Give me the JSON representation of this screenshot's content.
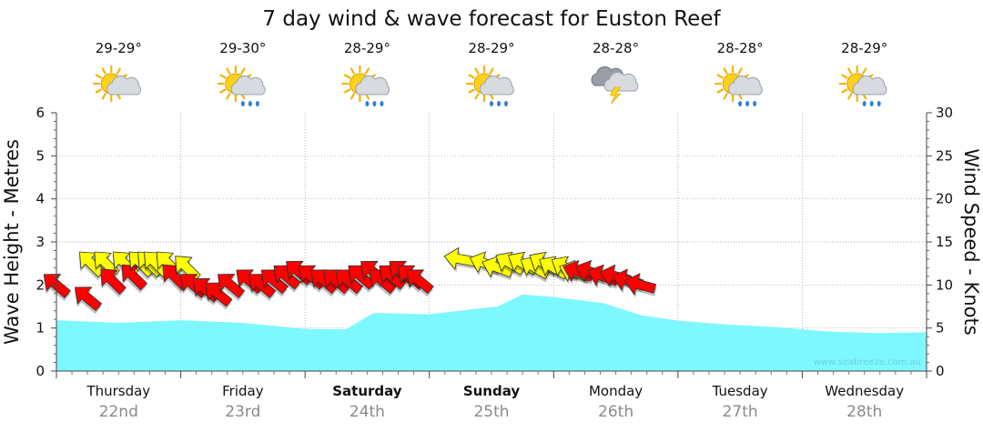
{
  "chart_data": {
    "type": "area",
    "title": "7 day wind & wave forecast for Euston Reef",
    "y_left_label": "Wave Height - Metres",
    "y_right_label": "Wind Speed - Knots",
    "y_left_ticks": [
      "0",
      "1",
      "2",
      "3",
      "4",
      "5",
      "6"
    ],
    "y_right_ticks": [
      "0",
      "5",
      "10",
      "15",
      "20",
      "25",
      "30"
    ],
    "ylim_left": [
      0,
      6
    ],
    "ylim_right": [
      0,
      30
    ],
    "grid": true,
    "watermark": "www.seabreeze.com.au",
    "days": [
      {
        "name": "Thursday",
        "date": "22nd",
        "temp": "29-29°",
        "icon": "sun-cloud-icon",
        "bold": false
      },
      {
        "name": "Friday",
        "date": "23rd",
        "temp": "29-30°",
        "icon": "sun-cloud-rain-icon",
        "bold": false
      },
      {
        "name": "Saturday",
        "date": "24th",
        "temp": "28-29°",
        "icon": "sun-cloud-rain-icon",
        "bold": true
      },
      {
        "name": "Sunday",
        "date": "25th",
        "temp": "28-29°",
        "icon": "sun-cloud-rain-icon",
        "bold": true
      },
      {
        "name": "Monday",
        "date": "26th",
        "temp": "28-28°",
        "icon": "storm-cloud-icon",
        "bold": false
      },
      {
        "name": "Tuesday",
        "date": "27th",
        "temp": "28-28°",
        "icon": "sun-cloud-rain-icon",
        "bold": false
      },
      {
        "name": "Wednesday",
        "date": "28th",
        "temp": "28-29°",
        "icon": "sun-cloud-rain-icon",
        "bold": false
      }
    ],
    "wave_series": {
      "name": "Wave Height",
      "color": "#7ef8ff",
      "x_days": [
        0,
        0.5,
        1.0,
        1.5,
        2.0,
        2.33,
        2.55,
        3.0,
        3.3,
        3.55,
        3.75,
        4.0,
        4.4,
        4.7,
        5.0,
        5.4,
        5.8,
        6.2,
        6.6,
        7.0
      ],
      "values": [
        1.18,
        1.12,
        1.18,
        1.12,
        0.98,
        0.97,
        1.35,
        1.32,
        1.42,
        1.5,
        1.78,
        1.72,
        1.58,
        1.3,
        1.17,
        1.08,
        1.02,
        0.92,
        0.88,
        0.9
      ]
    },
    "wind_series": {
      "name": "Wind",
      "calm_color": "#ffff00",
      "strong_color": "#ff0000",
      "points": [
        {
          "x": 0.0,
          "knots": 10.0,
          "color": "red",
          "angle": 40
        },
        {
          "x": 0.25,
          "knots": 8.5,
          "color": "red",
          "angle": 40
        },
        {
          "x": 0.28,
          "knots": 12.5,
          "color": "yellow",
          "angle": 45
        },
        {
          "x": 0.4,
          "knots": 12.5,
          "color": "yellow",
          "angle": 45
        },
        {
          "x": 0.45,
          "knots": 10.5,
          "color": "red",
          "angle": 45
        },
        {
          "x": 0.55,
          "knots": 12.5,
          "color": "yellow",
          "angle": 45
        },
        {
          "x": 0.62,
          "knots": 11.0,
          "color": "red",
          "angle": 45
        },
        {
          "x": 0.68,
          "knots": 12.5,
          "color": "yellow",
          "angle": 45
        },
        {
          "x": 0.75,
          "knots": 12.5,
          "color": "yellow",
          "angle": 45
        },
        {
          "x": 0.8,
          "knots": 12.5,
          "color": "yellow",
          "angle": 45
        },
        {
          "x": 0.9,
          "knots": 12.5,
          "color": "yellow",
          "angle": 45
        },
        {
          "x": 0.95,
          "knots": 11.0,
          "color": "red",
          "angle": 45
        },
        {
          "x": 1.05,
          "knots": 12.0,
          "color": "yellow",
          "angle": 45
        },
        {
          "x": 1.1,
          "knots": 10.0,
          "color": "red",
          "angle": 40
        },
        {
          "x": 1.2,
          "knots": 9.5,
          "color": "red",
          "angle": 40
        },
        {
          "x": 1.3,
          "knots": 9.0,
          "color": "red",
          "angle": 40
        },
        {
          "x": 1.4,
          "knots": 10.0,
          "color": "red",
          "angle": 40
        },
        {
          "x": 1.55,
          "knots": 10.5,
          "color": "red",
          "angle": 40
        },
        {
          "x": 1.65,
          "knots": 10.0,
          "color": "red",
          "angle": 40
        },
        {
          "x": 1.75,
          "knots": 10.5,
          "color": "red",
          "angle": 40
        },
        {
          "x": 1.85,
          "knots": 11.0,
          "color": "red",
          "angle": 40
        },
        {
          "x": 1.95,
          "knots": 11.5,
          "color": "red",
          "angle": 40
        },
        {
          "x": 2.05,
          "knots": 11.0,
          "color": "red",
          "angle": 40
        },
        {
          "x": 2.15,
          "knots": 10.5,
          "color": "red",
          "angle": 40
        },
        {
          "x": 2.25,
          "knots": 10.5,
          "color": "red",
          "angle": 40
        },
        {
          "x": 2.35,
          "knots": 10.5,
          "color": "red",
          "angle": 40
        },
        {
          "x": 2.45,
          "knots": 11.0,
          "color": "red",
          "angle": 40
        },
        {
          "x": 2.55,
          "knots": 11.5,
          "color": "red",
          "angle": 40
        },
        {
          "x": 2.62,
          "knots": 10.5,
          "color": "red",
          "angle": 40
        },
        {
          "x": 2.7,
          "knots": 11.0,
          "color": "red",
          "angle": 40
        },
        {
          "x": 2.78,
          "knots": 11.5,
          "color": "red",
          "angle": 40
        },
        {
          "x": 2.85,
          "knots": 11.0,
          "color": "red",
          "angle": 40
        },
        {
          "x": 2.92,
          "knots": 10.5,
          "color": "red",
          "angle": 40
        },
        {
          "x": 3.25,
          "knots": 13.0,
          "color": "yellow",
          "angle": 10
        },
        {
          "x": 3.45,
          "knots": 12.5,
          "color": "yellow",
          "angle": 20
        },
        {
          "x": 3.55,
          "knots": 12.0,
          "color": "yellow",
          "angle": 20
        },
        {
          "x": 3.65,
          "knots": 12.5,
          "color": "yellow",
          "angle": 30
        },
        {
          "x": 3.75,
          "knots": 12.5,
          "color": "yellow",
          "angle": 30
        },
        {
          "x": 3.85,
          "knots": 12.0,
          "color": "yellow",
          "angle": 30
        },
        {
          "x": 3.92,
          "knots": 12.5,
          "color": "yellow",
          "angle": 30
        },
        {
          "x": 4.0,
          "knots": 12.0,
          "color": "yellow",
          "angle": 30
        },
        {
          "x": 4.1,
          "knots": 12.0,
          "color": "yellow",
          "angle": 30
        },
        {
          "x": 4.17,
          "knots": 11.5,
          "color": "yellow",
          "angle": 20
        },
        {
          "x": 4.2,
          "knots": 11.5,
          "color": "red",
          "angle": 20
        },
        {
          "x": 4.3,
          "knots": 11.5,
          "color": "red",
          "angle": 20
        },
        {
          "x": 4.4,
          "knots": 11.0,
          "color": "red",
          "angle": 20
        },
        {
          "x": 4.5,
          "knots": 11.0,
          "color": "red",
          "angle": 15
        },
        {
          "x": 4.6,
          "knots": 10.5,
          "color": "red",
          "angle": 15
        },
        {
          "x": 4.7,
          "knots": 10.0,
          "color": "red",
          "angle": 15
        }
      ]
    }
  }
}
